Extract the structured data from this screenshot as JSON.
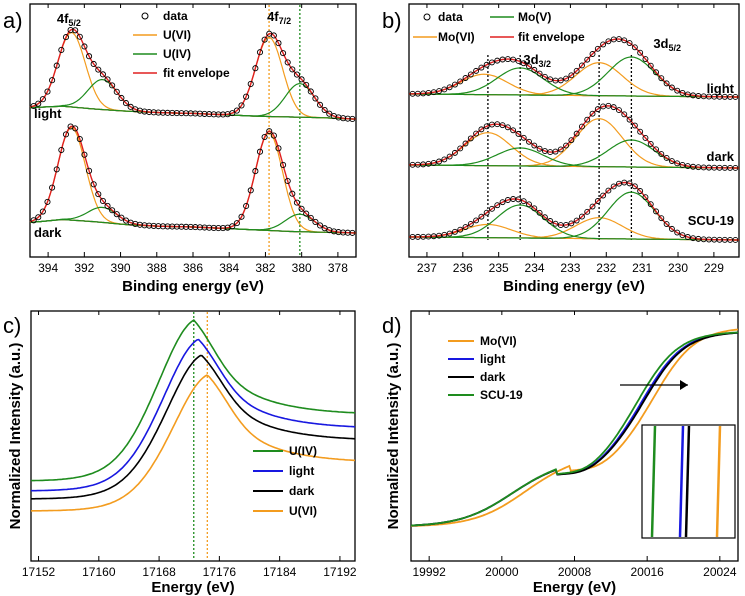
{
  "colors": {
    "data": "#000000",
    "orange": "#f39c1f",
    "green": "#1e8c1e",
    "red": "#e02020",
    "blue": "#1818e0",
    "black": "#000000"
  },
  "chart_data": [
    {
      "panel": "a)",
      "type": "line",
      "xlabel": "Binding energy (eV)",
      "xlim": [
        395,
        377
      ],
      "xticks": [
        394,
        392,
        390,
        388,
        386,
        384,
        382,
        380,
        378
      ],
      "legend": [
        "data",
        "U(VI)",
        "U(IV)",
        "fit envelope"
      ],
      "peak_labels": [
        {
          "text": "4f",
          "sub": "5/2",
          "x": 392.8
        },
        {
          "text": "4f",
          "sub": "7/2",
          "x": 381.8
        }
      ],
      "ref_lines": [
        {
          "x": 381.8,
          "color": "orange"
        },
        {
          "x": 380.1,
          "color": "green"
        }
      ],
      "samples": [
        {
          "name": "light",
          "baseline": [
            0.38,
            0.4,
            0.36,
            0.33,
            0.31,
            0.3,
            0.28,
            0.26,
            0.25,
            0.24,
            0.22
          ],
          "components": [
            {
              "species": "U(VI)",
              "center": 392.7,
              "height": 0.62,
              "width": 0.75
            },
            {
              "species": "U(VI)",
              "center": 381.8,
              "height": 0.66,
              "width": 0.75
            },
            {
              "species": "U(IV)",
              "center": 391.0,
              "height": 0.25,
              "width": 0.8
            },
            {
              "species": "U(IV)",
              "center": 380.1,
              "height": 0.28,
              "width": 0.8
            }
          ]
        },
        {
          "name": "dark",
          "baseline": [
            0.3,
            0.34,
            0.31,
            0.27,
            0.25,
            0.24,
            0.22,
            0.2,
            0.18,
            0.17,
            0.16
          ],
          "components": [
            {
              "species": "U(VI)",
              "center": 392.7,
              "height": 0.74,
              "width": 0.75
            },
            {
              "species": "U(VI)",
              "center": 381.8,
              "height": 0.78,
              "width": 0.75
            },
            {
              "species": "U(IV)",
              "center": 391.0,
              "height": 0.12,
              "width": 0.8
            },
            {
              "species": "U(IV)",
              "center": 380.1,
              "height": 0.14,
              "width": 0.8
            }
          ]
        }
      ]
    },
    {
      "panel": "b)",
      "type": "line",
      "xlabel": "Binding energy (eV)",
      "xlim": [
        237.5,
        228.3
      ],
      "xticks": [
        237,
        236,
        235,
        234,
        233,
        232,
        231,
        230,
        229
      ],
      "legend": [
        "data",
        "Mo(VI)",
        "Mo(V)",
        "fit envelope"
      ],
      "peak_labels": [
        {
          "text": "3d",
          "sub": "3/2",
          "x": 234.2
        },
        {
          "text": "3d",
          "sub": "5/2",
          "x": 230.8
        }
      ],
      "ref_lines": [
        235.3,
        234.4,
        232.2,
        231.3
      ],
      "samples": [
        {
          "name": "light",
          "components": [
            {
              "species": "Mo(VI)",
              "center": 235.4,
              "height": 0.34
            },
            {
              "species": "Mo(VI)",
              "center": 232.2,
              "height": 0.55
            },
            {
              "species": "Mo(V)",
              "center": 234.4,
              "height": 0.45
            },
            {
              "species": "Mo(V)",
              "center": 231.3,
              "height": 0.65
            }
          ]
        },
        {
          "name": "dark",
          "components": [
            {
              "species": "Mo(VI)",
              "center": 235.3,
              "height": 0.55
            },
            {
              "species": "Mo(VI)",
              "center": 232.2,
              "height": 0.8
            },
            {
              "species": "Mo(V)",
              "center": 234.4,
              "height": 0.3
            },
            {
              "species": "Mo(V)",
              "center": 231.3,
              "height": 0.45
            }
          ]
        },
        {
          "name": "SCU-19",
          "components": [
            {
              "species": "Mo(VI)",
              "center": 235.3,
              "height": 0.22
            },
            {
              "species": "Mo(VI)",
              "center": 232.2,
              "height": 0.35
            },
            {
              "species": "Mo(V)",
              "center": 234.4,
              "height": 0.55
            },
            {
              "species": "Mo(V)",
              "center": 231.3,
              "height": 0.78
            }
          ]
        }
      ]
    },
    {
      "panel": "c)",
      "type": "line",
      "xlabel": "Energy (eV)",
      "ylabel": "Normalized Intensity (a.u.)",
      "xlim": [
        17151,
        17194
      ],
      "xticks": [
        17152,
        17160,
        17168,
        17176,
        17184,
        17192
      ],
      "ref_lines": [
        {
          "x": 17172.6,
          "color": "green"
        },
        {
          "x": 17174.4,
          "color": "orange"
        }
      ],
      "series": [
        {
          "name": "U(IV)",
          "color": "green",
          "peak_x": 17172.6,
          "peak": 1.0,
          "offset": 0.15,
          "tail": 0.43
        },
        {
          "name": "light",
          "color": "blue",
          "peak_x": 17173.2,
          "peak": 0.93,
          "offset": 0.1,
          "tail": 0.41
        },
        {
          "name": "dark",
          "color": "black",
          "peak_x": 17173.6,
          "peak": 0.87,
          "offset": 0.06,
          "tail": 0.39
        },
        {
          "name": "U(VI)",
          "color": "orange",
          "peak_x": 17174.4,
          "peak": 0.81,
          "offset": 0.0,
          "tail": 0.34
        }
      ]
    },
    {
      "panel": "d)",
      "type": "line",
      "xlabel": "Energy (eV)",
      "ylabel": "Normalized Intensity (a.u.)",
      "xlim": [
        19990,
        20026
      ],
      "xticks": [
        19992,
        20000,
        20008,
        20016,
        20024
      ],
      "series": [
        {
          "name": "Mo(VI)",
          "color": "orange",
          "edge_x": 20017.0,
          "pre_peak_x": 20007.5,
          "pre_peak": 0.33
        },
        {
          "name": "light",
          "color": "blue",
          "edge_x": 20015.7,
          "pre_peak_x": 20006.0,
          "pre_peak": 0.31
        },
        {
          "name": "dark",
          "color": "black",
          "edge_x": 20015.9,
          "pre_peak_x": 20006.0,
          "pre_peak": 0.31
        },
        {
          "name": "SCU-19",
          "color": "green",
          "edge_x": 20015.2,
          "pre_peak_x": 20006.0,
          "pre_peak": 0.31
        }
      ]
    }
  ]
}
